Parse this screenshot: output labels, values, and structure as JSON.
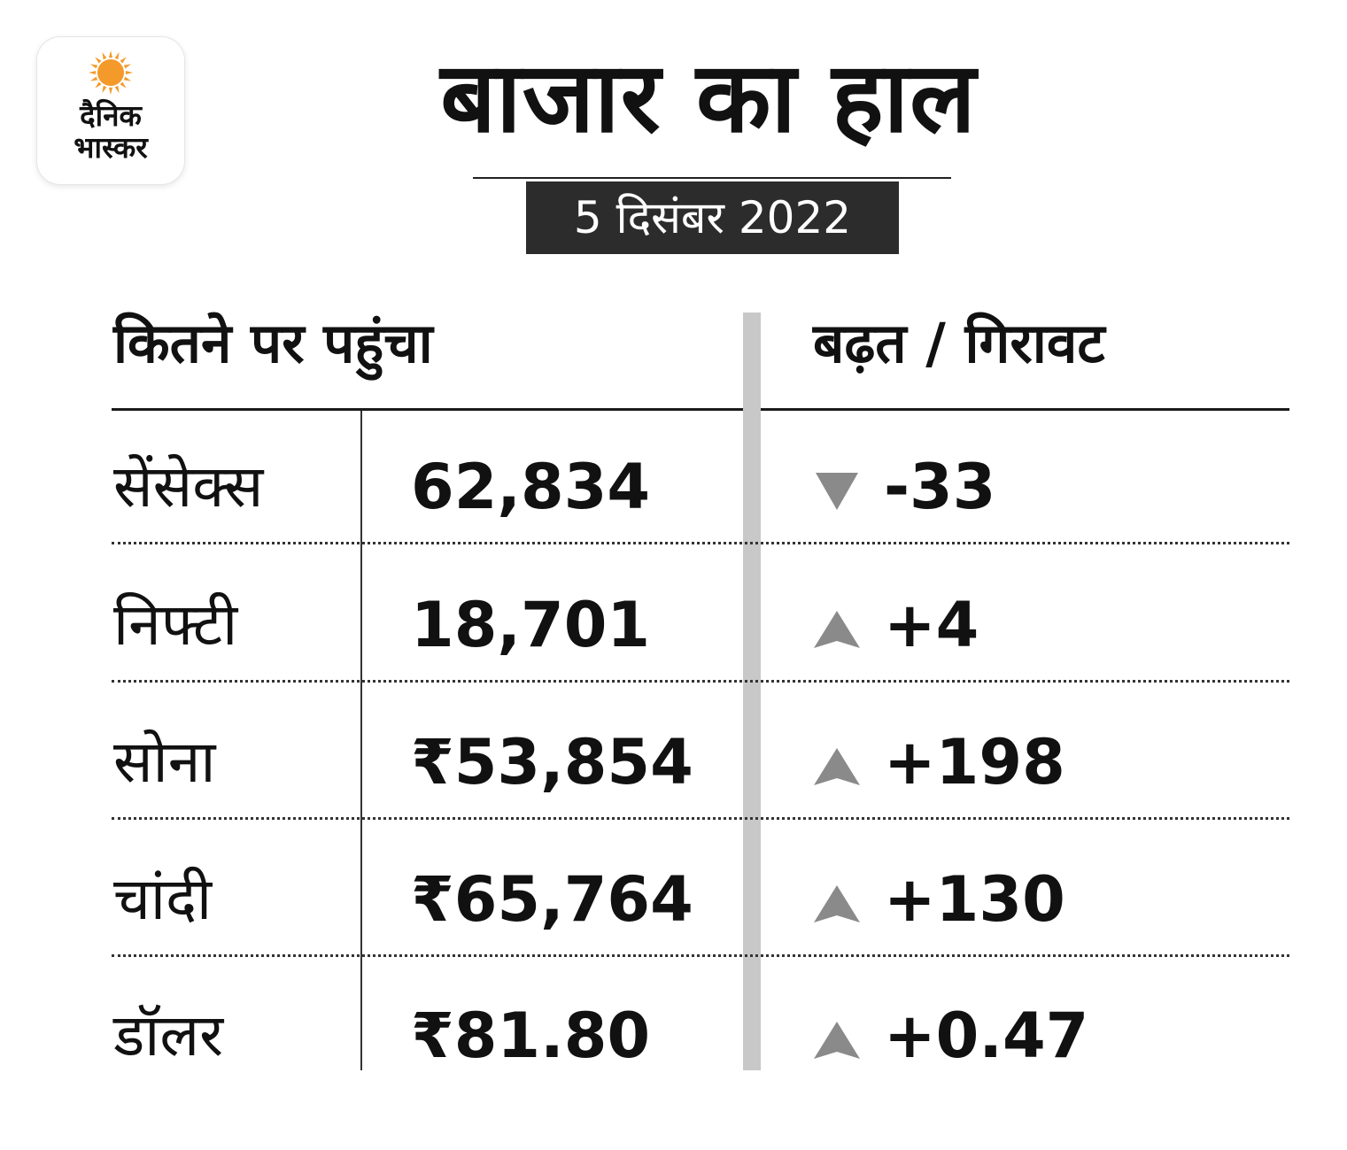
{
  "logo": {
    "line1": "दैनिक",
    "line2": "भास्कर",
    "sun_color": "#f39a2b"
  },
  "title": "बाजार का हाल",
  "date": "5 दिसंबर 2022",
  "headers": {
    "level": "कितने पर पहुंचा",
    "change": "बढ़त / गिरावट"
  },
  "rows": [
    {
      "name": "सेंसेक्स",
      "value": "62,834",
      "direction": "down",
      "change": "-33"
    },
    {
      "name": "निफ्टी",
      "value": "18,701",
      "direction": "up",
      "change": "+4"
    },
    {
      "name": "सोना",
      "value": "₹53,854",
      "direction": "up",
      "change": "+198"
    },
    {
      "name": "चांदी",
      "value": "₹65,764",
      "direction": "up",
      "change": "+130"
    },
    {
      "name": "डॉलर",
      "value": "₹81.80",
      "direction": "up",
      "change": "+0.47"
    }
  ],
  "colors": {
    "arrow": "#8a8a8a",
    "date_bg": "#2c2c2c",
    "divider": "#c8c8c8"
  }
}
